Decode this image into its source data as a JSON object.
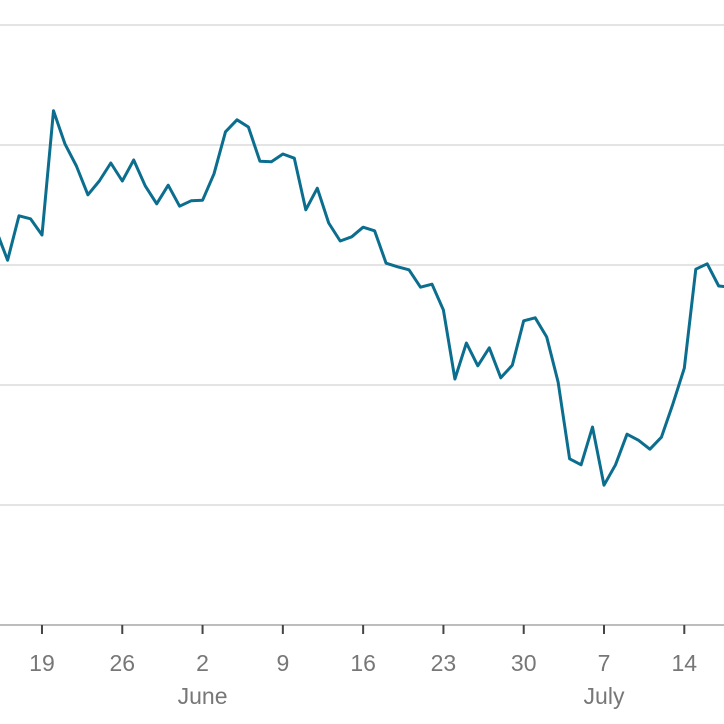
{
  "chart_data": {
    "type": "line",
    "categories": [
      null,
      null,
      null,
      null,
      "19",
      null,
      null,
      null,
      null,
      null,
      null,
      "26",
      null,
      null,
      null,
      null,
      null,
      null,
      "2",
      null,
      null,
      null,
      null,
      null,
      null,
      "9",
      null,
      null,
      null,
      null,
      null,
      null,
      "16",
      null,
      null,
      null,
      null,
      null,
      null,
      "23",
      null,
      null,
      null,
      null,
      null,
      null,
      "30",
      null,
      null,
      null,
      null,
      null,
      null,
      "7",
      null,
      null,
      null,
      null,
      null,
      null,
      "14",
      null,
      null,
      null,
      null
    ],
    "month_labels": [
      null,
      null,
      null,
      null,
      null,
      null,
      null,
      null,
      null,
      null,
      null,
      null,
      null,
      null,
      null,
      null,
      null,
      null,
      "June",
      null,
      null,
      null,
      null,
      null,
      null,
      null,
      null,
      null,
      null,
      null,
      null,
      null,
      null,
      null,
      null,
      null,
      null,
      null,
      null,
      null,
      null,
      null,
      null,
      null,
      null,
      null,
      null,
      null,
      null,
      null,
      null,
      null,
      null,
      "July",
      null,
      null,
      null,
      null,
      null,
      null,
      null,
      null,
      null,
      null,
      null
    ],
    "values": [
      65.8,
      60.8,
      68.2,
      67.7,
      65,
      85.7,
      80.2,
      76.5,
      71.7,
      74,
      77,
      74,
      77.5,
      73.2,
      70.2,
      73.3,
      69.8,
      70.7,
      70.8,
      75.2,
      82.2,
      84.2,
      83,
      77.3,
      77.2,
      78.5,
      77.8,
      69.2,
      72.8,
      67,
      64,
      64.7,
      66.3,
      65.7,
      60.3,
      59.7,
      59.2,
      56.3,
      56.8,
      52.5,
      41,
      47,
      43.2,
      46.2,
      41.2,
      43.3,
      50.7,
      51.2,
      48,
      40.5,
      27.7,
      26.7,
      33,
      23.3,
      26.7,
      31.8,
      30.8,
      29.3,
      31.3,
      36.8,
      42.8,
      59.3,
      60.2,
      56.5,
      56.3
    ],
    "color": "#0b6e8e",
    "ylim": [
      0,
      100
    ],
    "yticks": [
      0,
      20,
      40,
      60,
      80,
      100
    ],
    "grid": true
  }
}
